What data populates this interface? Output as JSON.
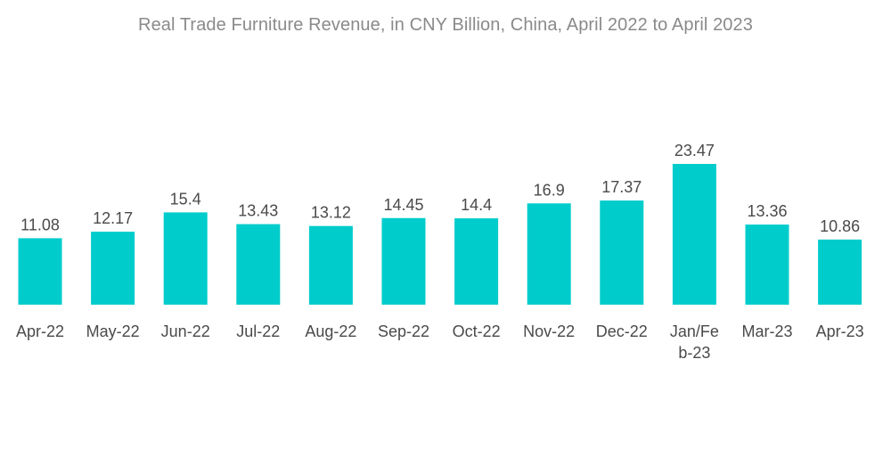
{
  "chart_data": {
    "type": "bar",
    "title": "Real Trade Furniture Revenue, in CNY Billion, China, April 2022 to April 2023",
    "xlabel": "",
    "ylabel": "",
    "categories": [
      "Apr-22",
      "May-22",
      "Jun-22",
      "Jul-22",
      "Aug-22",
      "Sep-22",
      "Oct-22",
      "Nov-22",
      "Dec-22",
      "Jan/Feb-23",
      "Mar-23",
      "Apr-23"
    ],
    "category_label_lines": [
      [
        "Apr-22"
      ],
      [
        "May-22"
      ],
      [
        "Jun-22"
      ],
      [
        "Jul-22"
      ],
      [
        "Aug-22"
      ],
      [
        "Sep-22"
      ],
      [
        "Oct-22"
      ],
      [
        "Nov-22"
      ],
      [
        "Dec-22"
      ],
      [
        "Jan/Fe",
        "b-23"
      ],
      [
        "Mar-23"
      ],
      [
        "Apr-23"
      ]
    ],
    "values": [
      11.08,
      12.17,
      15.4,
      13.43,
      13.12,
      14.45,
      14.4,
      16.9,
      17.37,
      23.47,
      13.36,
      10.86
    ],
    "data_labels": [
      "11.08",
      "12.17",
      "15.4",
      "13.43",
      "13.12",
      "14.45",
      "14.4",
      "16.9",
      "17.37",
      "23.47",
      "13.36",
      "10.86"
    ],
    "ylim": [
      0,
      25
    ],
    "grid": false,
    "legend": "none",
    "bar_color": "#00cccc",
    "label_color": "#4a4a4a"
  }
}
